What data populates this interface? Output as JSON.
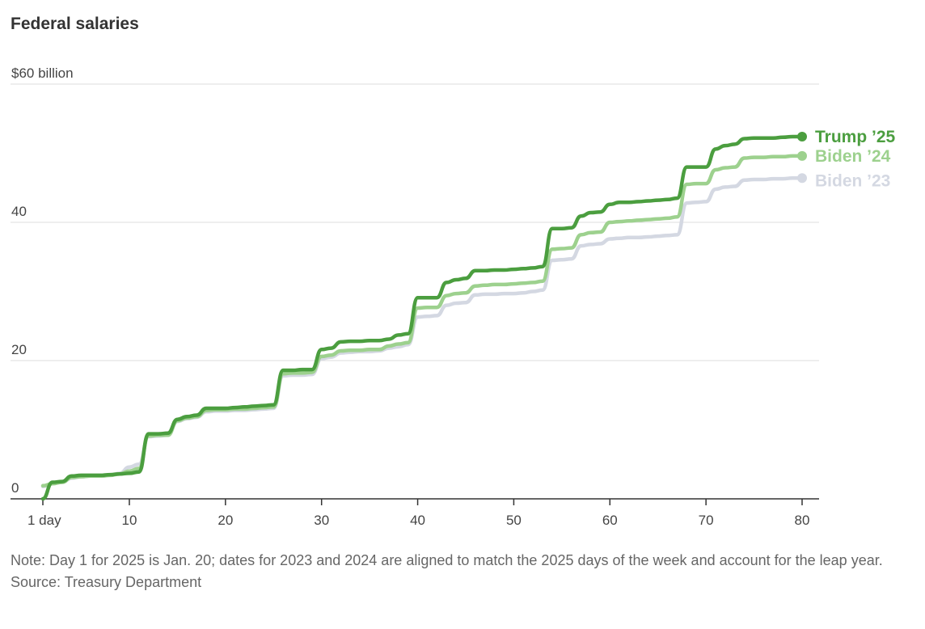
{
  "title": "Federal salaries",
  "note": "Note: Day 1 for 2025 is Jan. 20; dates for 2023 and 2024 are aligned to match the 2025 days of the week and account for the leap year.",
  "source": "Source: Treasury Department",
  "colors": {
    "trump25": "#4b9e3f",
    "biden24": "#9dd18e",
    "biden23": "#d4d8e2",
    "grid": "#dddddd",
    "axis": "#333333"
  },
  "chart_data": {
    "type": "line",
    "title": "Federal salaries",
    "xlabel": "",
    "ylabel": "",
    "xlim": [
      1,
      80
    ],
    "ylim": [
      0,
      60
    ],
    "x_ticks": [
      1,
      10,
      20,
      30,
      40,
      50,
      60,
      70,
      80
    ],
    "x_tick_labels": [
      "1 day",
      "10",
      "20",
      "30",
      "40",
      "50",
      "60",
      "70",
      "80"
    ],
    "y_ticks": [
      0,
      20,
      40,
      60
    ],
    "y_tick_labels": [
      "0",
      "20",
      "40",
      "$60 billion"
    ],
    "grid": true,
    "legend": "end-of-line labels",
    "series": [
      {
        "name": "Biden ’23",
        "color": "#d4d8e2",
        "x": [
          1,
          2,
          3,
          4,
          5,
          6,
          7,
          8,
          9,
          10,
          11,
          12,
          13,
          14,
          15,
          16,
          17,
          18,
          19,
          20,
          21,
          22,
          23,
          24,
          25,
          26,
          27,
          28,
          29,
          30,
          31,
          32,
          33,
          34,
          35,
          36,
          37,
          38,
          39,
          40,
          41,
          42,
          43,
          44,
          45,
          46,
          47,
          48,
          49,
          50,
          51,
          52,
          53,
          54,
          55,
          56,
          57,
          58,
          59,
          60,
          61,
          62,
          63,
          64,
          65,
          66,
          67,
          68,
          69,
          70,
          71,
          72,
          73,
          74,
          75,
          76,
          77,
          78,
          79,
          80
        ],
        "y": [
          1.8,
          2.2,
          2.4,
          3.0,
          3.2,
          3.3,
          3.3,
          3.4,
          3.7,
          4.6,
          5.0,
          9.0,
          9.1,
          9.2,
          11.2,
          11.6,
          11.8,
          12.6,
          12.7,
          12.7,
          12.8,
          12.8,
          12.9,
          13.0,
          13.1,
          17.8,
          17.9,
          17.9,
          18.0,
          20.3,
          20.5,
          21.1,
          21.2,
          21.3,
          21.3,
          21.4,
          21.8,
          22.0,
          22.3,
          26.3,
          26.4,
          26.5,
          28.0,
          28.3,
          28.4,
          29.5,
          29.6,
          29.6,
          29.7,
          29.7,
          29.8,
          30.0,
          30.2,
          34.5,
          34.6,
          34.7,
          36.6,
          36.8,
          36.9,
          37.6,
          37.7,
          37.8,
          37.8,
          37.9,
          38.0,
          38.1,
          38.2,
          42.8,
          42.9,
          43.0,
          44.8,
          45.1,
          45.2,
          46.1,
          46.2,
          46.2,
          46.3,
          46.3,
          46.4,
          46.4
        ]
      },
      {
        "name": "Biden ’24",
        "color": "#9dd18e",
        "x": [
          1,
          2,
          3,
          4,
          5,
          6,
          7,
          8,
          9,
          10,
          11,
          12,
          13,
          14,
          15,
          16,
          17,
          18,
          19,
          20,
          21,
          22,
          23,
          24,
          25,
          26,
          27,
          28,
          29,
          30,
          31,
          32,
          33,
          34,
          35,
          36,
          37,
          38,
          39,
          40,
          41,
          42,
          43,
          44,
          45,
          46,
          47,
          48,
          49,
          50,
          51,
          52,
          53,
          54,
          55,
          56,
          57,
          58,
          59,
          60,
          61,
          62,
          63,
          64,
          65,
          66,
          67,
          68,
          69,
          70,
          71,
          72,
          73,
          74,
          75,
          76,
          77,
          78,
          79,
          80
        ],
        "y": [
          1.9,
          2.2,
          2.4,
          3.1,
          3.2,
          3.3,
          3.3,
          3.4,
          3.6,
          4.0,
          4.4,
          9.1,
          9.2,
          9.2,
          11.3,
          11.7,
          11.9,
          12.8,
          12.9,
          12.9,
          13.0,
          13.0,
          13.1,
          13.2,
          13.3,
          18.1,
          18.2,
          18.2,
          18.3,
          20.6,
          20.8,
          21.4,
          21.5,
          21.5,
          21.6,
          21.6,
          22.1,
          22.4,
          22.6,
          27.6,
          27.7,
          27.7,
          29.4,
          29.7,
          29.8,
          30.8,
          30.9,
          31.0,
          31.0,
          31.1,
          31.2,
          31.3,
          31.5,
          36.1,
          36.2,
          36.3,
          38.2,
          38.5,
          38.6,
          40.0,
          40.1,
          40.2,
          40.3,
          40.4,
          40.5,
          40.6,
          40.8,
          45.5,
          45.6,
          45.6,
          47.6,
          47.9,
          48.0,
          49.3,
          49.4,
          49.4,
          49.5,
          49.5,
          49.6,
          49.6
        ]
      },
      {
        "name": "Trump ’25",
        "color": "#4b9e3f",
        "x": [
          1,
          2,
          3,
          4,
          5,
          6,
          7,
          8,
          9,
          10,
          11,
          12,
          13,
          14,
          15,
          16,
          17,
          18,
          19,
          20,
          21,
          22,
          23,
          24,
          25,
          26,
          27,
          28,
          29,
          30,
          31,
          32,
          33,
          34,
          35,
          36,
          37,
          38,
          39,
          40,
          41,
          42,
          43,
          44,
          45,
          46,
          47,
          48,
          49,
          50,
          51,
          52,
          53,
          54,
          55,
          56,
          57,
          58,
          59,
          60,
          61,
          62,
          63,
          64,
          65,
          66,
          67,
          68,
          69,
          70,
          71,
          72,
          73,
          74,
          75,
          76,
          77,
          78,
          79,
          80
        ],
        "y": [
          0.0,
          2.4,
          2.5,
          3.3,
          3.4,
          3.4,
          3.4,
          3.5,
          3.6,
          3.7,
          3.9,
          9.4,
          9.4,
          9.5,
          11.5,
          11.9,
          12.1,
          13.1,
          13.1,
          13.1,
          13.2,
          13.3,
          13.4,
          13.5,
          13.6,
          18.6,
          18.6,
          18.7,
          18.7,
          21.6,
          21.8,
          22.7,
          22.8,
          22.8,
          22.9,
          22.9,
          23.1,
          23.7,
          23.9,
          29.1,
          29.1,
          29.1,
          31.3,
          31.7,
          31.9,
          33.0,
          33.0,
          33.1,
          33.1,
          33.2,
          33.3,
          33.4,
          33.6,
          39.1,
          39.1,
          39.2,
          40.9,
          41.4,
          41.5,
          42.6,
          42.9,
          42.9,
          43.0,
          43.1,
          43.2,
          43.3,
          43.5,
          48.0,
          48.0,
          48.0,
          50.6,
          51.1,
          51.3,
          52.1,
          52.2,
          52.2,
          52.2,
          52.3,
          52.4,
          52.4
        ]
      }
    ]
  }
}
